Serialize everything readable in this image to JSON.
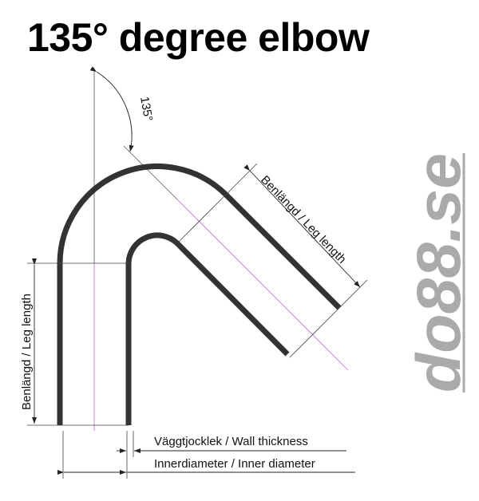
{
  "title": "135° degree elbow",
  "angle_label": "135°",
  "leg_length_label": "Benlängd / Leg length",
  "wall_thickness_label": "Väggtjocklek / Wall thickness",
  "inner_diameter_label": "Innerdiameter / Inner diameter",
  "logo": {
    "text": "do88.se",
    "color": "#aaaaaa"
  },
  "colors": {
    "pipe": "#333333",
    "centerline": "#cc66cc",
    "dimension": "#444444"
  }
}
